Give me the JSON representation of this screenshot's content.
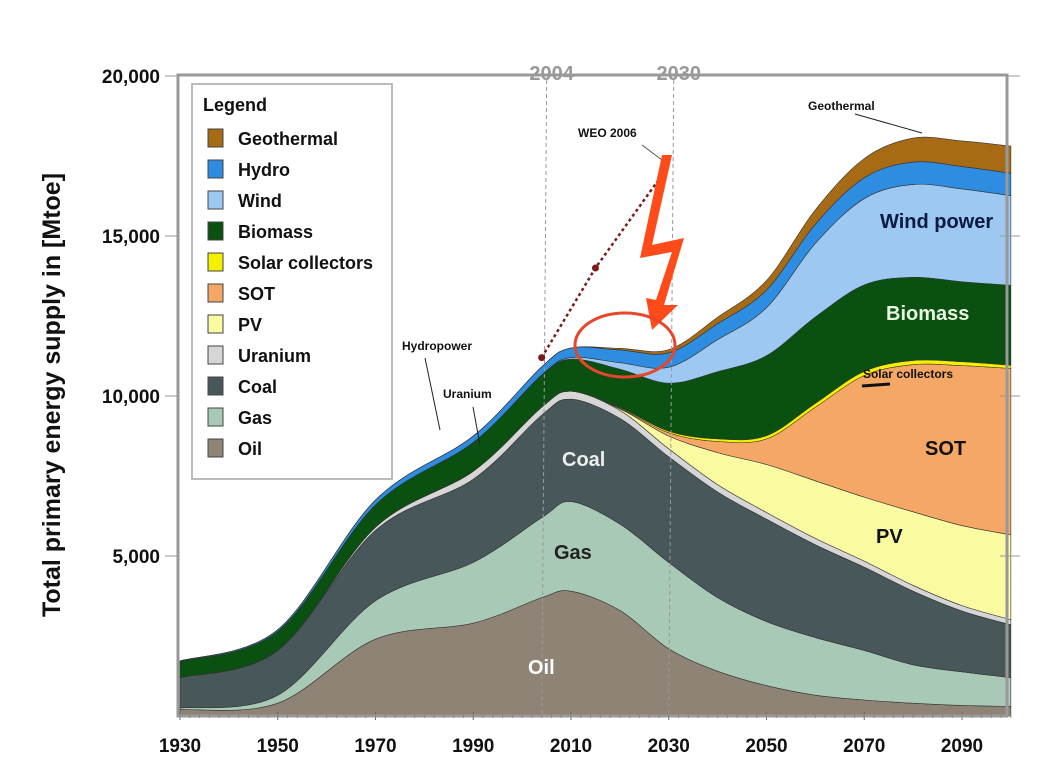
{
  "chart_data": {
    "type": "area",
    "stacked": true,
    "title": "",
    "xlabel": "",
    "ylabel": "Total primary energy supply in [Mtoe]",
    "xlim": [
      1930,
      2100
    ],
    "ylim": [
      0,
      20000
    ],
    "x_ticks": [
      1930,
      1950,
      1970,
      1990,
      2010,
      2030,
      2050,
      2070,
      2090
    ],
    "y_ticks": [
      5000,
      10000,
      15000,
      20000
    ],
    "y_tick_labels": [
      "5,000",
      "10,000",
      "15,000",
      "20,000"
    ],
    "x": [
      1930,
      1950,
      1970,
      1990,
      2004,
      2010,
      2020,
      2030,
      2040,
      2050,
      2060,
      2070,
      2080,
      2090,
      2100
    ],
    "series": [
      {
        "name": "Oil",
        "color": "#8f8375",
        "values": [
          200,
          400,
          2400,
          2900,
          3700,
          3900,
          3300,
          2100,
          1400,
          950,
          650,
          500,
          400,
          330,
          300
        ]
      },
      {
        "name": "Gas",
        "color": "#a8c9b5",
        "values": [
          50,
          250,
          1200,
          1900,
          2500,
          2800,
          2700,
          2700,
          2300,
          2000,
          1800,
          1550,
          1200,
          1050,
          900
        ]
      },
      {
        "name": "Coal",
        "color": "#48575a",
        "values": [
          950,
          1400,
          2200,
          2600,
          3200,
          3200,
          3300,
          3300,
          3300,
          3200,
          2900,
          2600,
          2300,
          1900,
          1650
        ]
      },
      {
        "name": "Uranium",
        "color": "#d6d6d6",
        "values": [
          0,
          0,
          100,
          250,
          250,
          250,
          250,
          250,
          230,
          210,
          200,
          190,
          180,
          170,
          160
        ]
      },
      {
        "name": "PV",
        "color": "#fafaa0",
        "values": [
          0,
          0,
          0,
          0,
          0,
          0,
          50,
          400,
          1000,
          1500,
          1800,
          2000,
          2300,
          2500,
          2650
        ]
      },
      {
        "name": "SOT",
        "color": "#f5a865",
        "values": [
          0,
          0,
          0,
          0,
          0,
          0,
          20,
          100,
          350,
          800,
          2300,
          3800,
          4600,
          5000,
          5200
        ]
      },
      {
        "name": "Solar collectors",
        "color": "#f5f000",
        "values": [
          0,
          0,
          0,
          0,
          0,
          0,
          20,
          50,
          80,
          100,
          120,
          130,
          130,
          120,
          100
        ]
      },
      {
        "name": "Biomass",
        "color": "#0a5010",
        "values": [
          500,
          600,
          700,
          900,
          1000,
          1000,
          1200,
          1500,
          2100,
          2500,
          2700,
          2700,
          2600,
          2500,
          2500
        ]
      },
      {
        "name": "Wind",
        "color": "#9cc8f2",
        "values": [
          0,
          0,
          0,
          0,
          10,
          50,
          200,
          500,
          1000,
          1500,
          2300,
          2700,
          2900,
          2900,
          2800
        ]
      },
      {
        "name": "Hydro",
        "color": "#2e8de0",
        "values": [
          20,
          50,
          150,
          200,
          250,
          300,
          400,
          450,
          500,
          550,
          600,
          650,
          700,
          700,
          700
        ]
      },
      {
        "name": "Geothermal",
        "color": "#a66b14",
        "values": [
          0,
          0,
          0,
          0,
          0,
          0,
          50,
          100,
          200,
          300,
          450,
          600,
          750,
          800,
          850
        ]
      }
    ],
    "legend": {
      "title": "Legend",
      "placement": "top-left",
      "entries": [
        "Geothermal",
        "Hydro",
        "Wind",
        "Biomass",
        "Solar collectors",
        "SOT",
        "PV",
        "Uranium",
        "Coal",
        "Gas",
        "Oil"
      ]
    },
    "reference_lines": [
      {
        "year": 2004,
        "label": "2004"
      },
      {
        "year": 2030,
        "label": "2030"
      }
    ],
    "weo_projection": {
      "label": "WEO 2006",
      "points": [
        [
          2004,
          11200
        ],
        [
          2015,
          14000
        ],
        [
          2030,
          17200
        ]
      ]
    },
    "annotations": {
      "geothermal": "Geothermal",
      "wind": "Wind power",
      "biomass": "Biomass",
      "solar": "Solar collectors",
      "sot": "SOT",
      "pv": "PV",
      "coal": "Coal",
      "gas": "Gas",
      "oil": "Oil",
      "hydro": "Hydropower",
      "uranium": "Uranium"
    }
  }
}
